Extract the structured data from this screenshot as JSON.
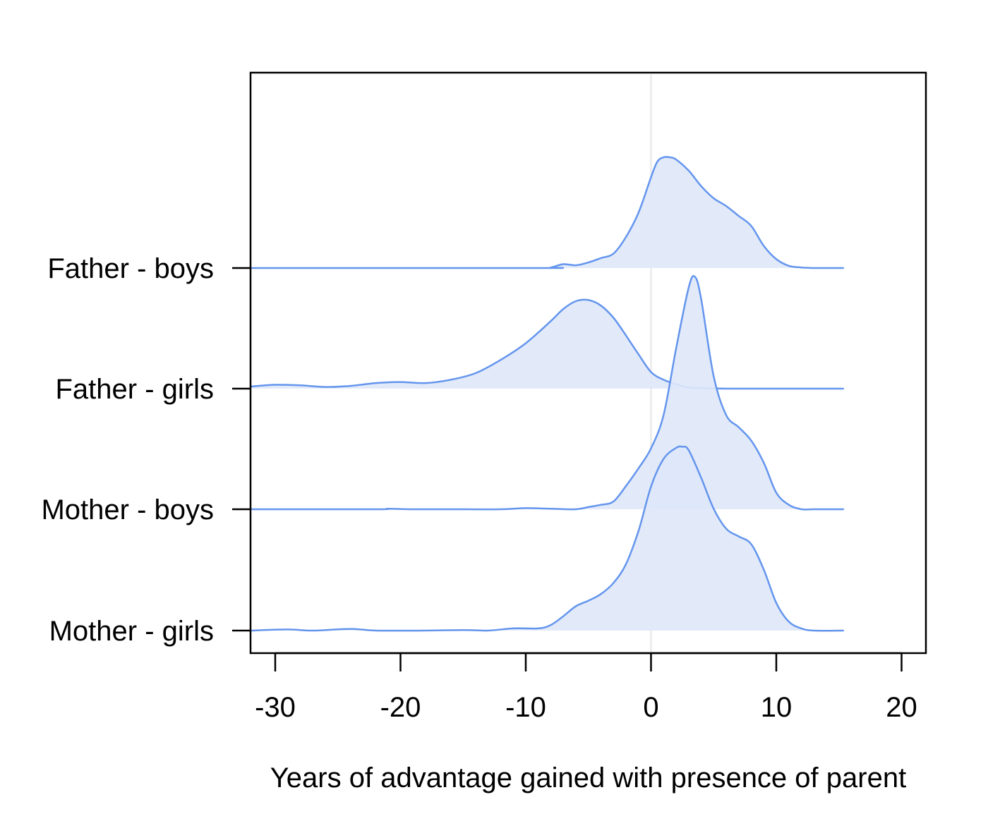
{
  "chart_data": {
    "type": "area",
    "subtype": "ridgeline-density",
    "title": "",
    "xlabel": "Years of advantage gained with presence of parent",
    "ylabel": "",
    "xlim": [
      -32,
      22
    ],
    "xticks": [
      -30,
      -20,
      -10,
      0,
      10,
      20
    ],
    "xtick_labels": [
      "-30",
      "-20",
      "-10",
      "0",
      "10",
      "20"
    ],
    "reference_line_x": 0,
    "line_color": "#6495ED",
    "fill_color": "#DFE8FA",
    "grid": false,
    "legend": "none",
    "series": [
      {
        "name": "Father - boys",
        "x": [
          -32,
          -9,
          -8,
          -7,
          -6,
          -5,
          -4,
          -3,
          -2,
          -1,
          0,
          0.5,
          1,
          1.5,
          2,
          3,
          4,
          5,
          6,
          7,
          8,
          9,
          10,
          11,
          12,
          13,
          14,
          15.4
        ],
        "y": [
          0,
          0,
          0.005,
          0.035,
          0.025,
          0.05,
          0.09,
          0.13,
          0.28,
          0.5,
          0.82,
          0.96,
          1.0,
          1.0,
          0.98,
          0.88,
          0.74,
          0.63,
          0.56,
          0.47,
          0.38,
          0.2,
          0.08,
          0.02,
          0.005,
          0,
          0,
          0
        ]
      },
      {
        "name": "Father - girls",
        "x": [
          -32,
          -30,
          -28,
          -26,
          -24,
          -22,
          -20,
          -18,
          -16,
          -14,
          -12,
          -10,
          -8,
          -7,
          -6,
          -5,
          -4,
          -3,
          -2,
          -1,
          0,
          1,
          2,
          3,
          4,
          6,
          8,
          10,
          12,
          15.4
        ],
        "y": [
          0.02,
          0.035,
          0.03,
          0.015,
          0.025,
          0.05,
          0.06,
          0.05,
          0.08,
          0.14,
          0.26,
          0.41,
          0.61,
          0.72,
          0.79,
          0.8,
          0.75,
          0.64,
          0.48,
          0.31,
          0.15,
          0.08,
          0.04,
          0.01,
          0.005,
          0,
          0,
          0,
          0,
          0
        ]
      },
      {
        "name": "Mother - boys",
        "x": [
          -32,
          -22,
          -21,
          -19,
          -15,
          -12,
          -10,
          -8,
          -6,
          -5,
          -4,
          -3,
          -2,
          -1,
          0,
          1,
          2,
          3,
          3.5,
          4,
          5,
          6,
          7,
          8,
          9,
          10,
          11,
          12,
          13,
          15.4
        ],
        "y": [
          0,
          0,
          0.005,
          0,
          0,
          0,
          0.01,
          0.005,
          0,
          0.02,
          0.04,
          0.07,
          0.21,
          0.37,
          0.55,
          0.85,
          1.45,
          2.0,
          2.1,
          1.9,
          1.2,
          0.85,
          0.74,
          0.62,
          0.42,
          0.15,
          0.04,
          0,
          0,
          0
        ]
      },
      {
        "name": "Mother - girls",
        "x": [
          -32,
          -29,
          -27,
          -24,
          -22,
          -18,
          -15,
          -13,
          -11,
          -9,
          -8,
          -7,
          -6,
          -5,
          -4,
          -3,
          -2,
          -1,
          0,
          1,
          2,
          2.5,
          3,
          4,
          5,
          6,
          7,
          8,
          9,
          10,
          11,
          12,
          13,
          15.4
        ],
        "y": [
          0,
          0.01,
          0,
          0.015,
          0,
          0,
          0.005,
          0,
          0.02,
          0.02,
          0.05,
          0.13,
          0.22,
          0.27,
          0.33,
          0.43,
          0.6,
          0.9,
          1.3,
          1.55,
          1.65,
          1.66,
          1.63,
          1.38,
          1.1,
          0.92,
          0.85,
          0.78,
          0.55,
          0.25,
          0.08,
          0.02,
          0,
          0
        ]
      }
    ]
  }
}
